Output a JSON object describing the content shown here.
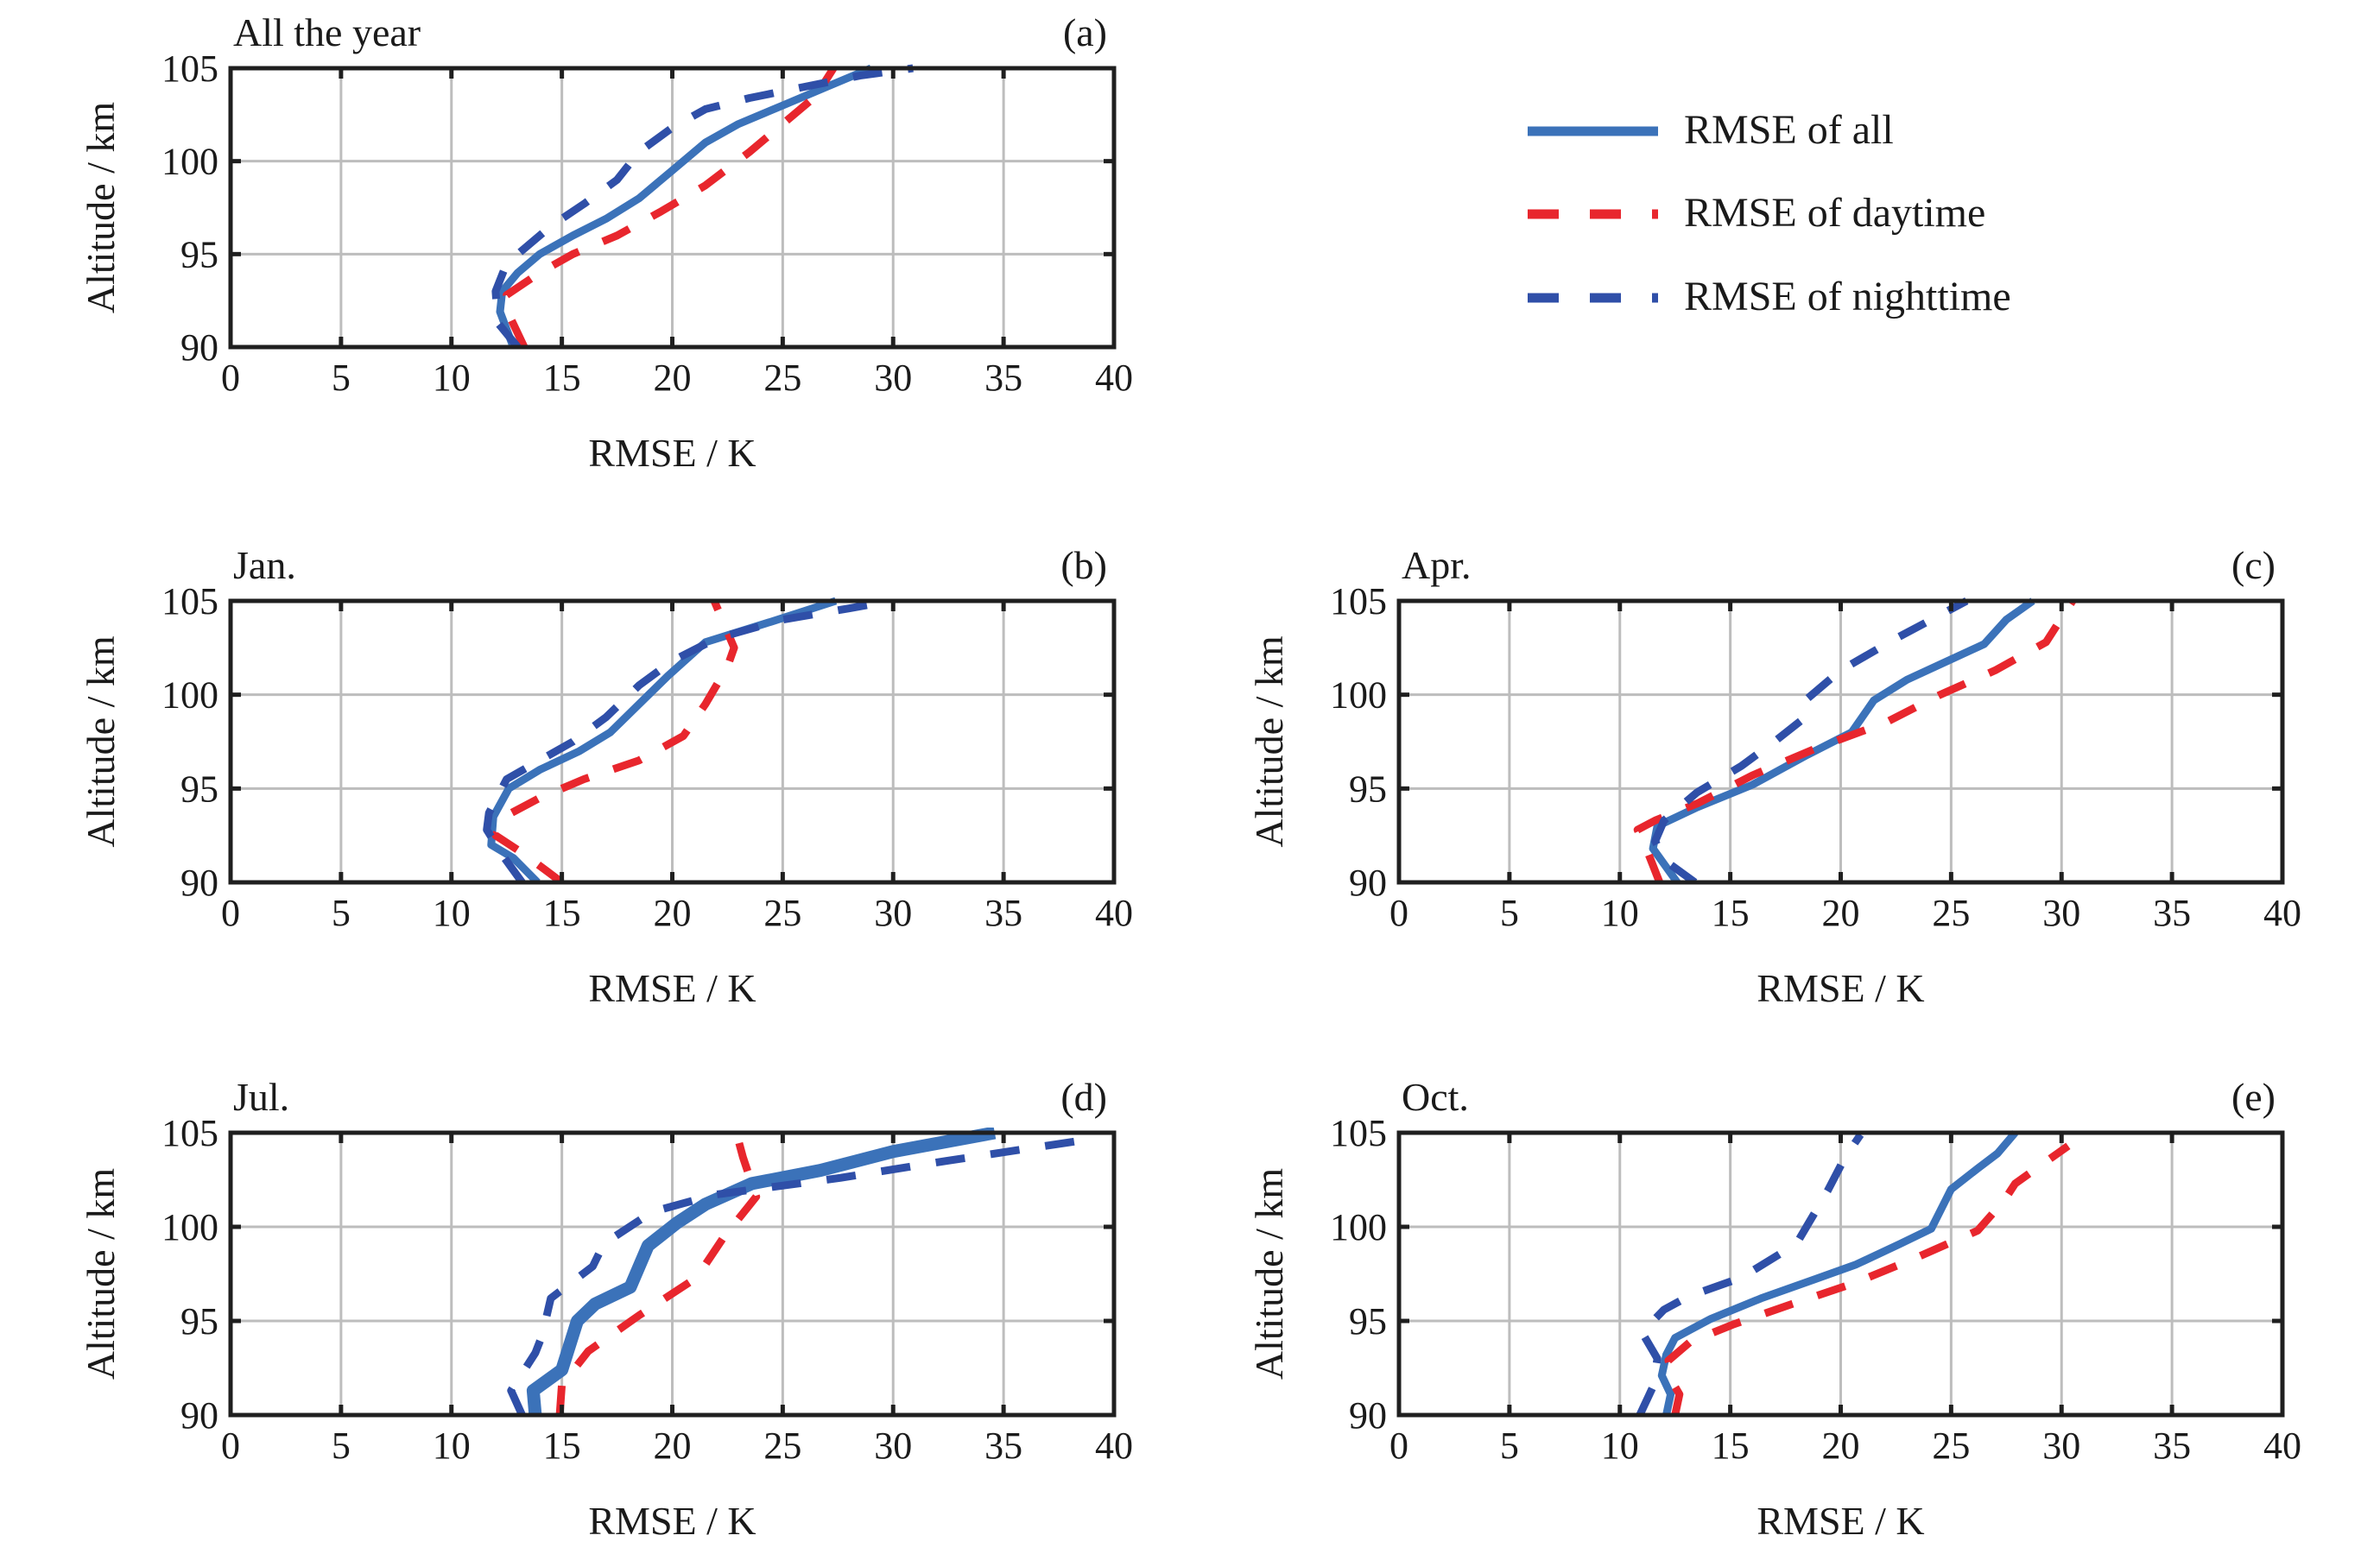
{
  "chart_data": {
    "type": "line",
    "legend": {
      "placement": "top-right",
      "entries": [
        {
          "name": "RMSE of all",
          "color": "#3b72b9",
          "style": "solid"
        },
        {
          "name": "RMSE of daytime",
          "color": "#e8262d",
          "style": "dashed"
        },
        {
          "name": "RMSE of nighttime",
          "color": "#2f4fa8",
          "style": "dashed"
        }
      ]
    },
    "panels": [
      {
        "id": "a",
        "label": "(a)",
        "title": "All the year",
        "xlabel": "RMSE / K",
        "ylabel": "Altitude / km",
        "xlim": [
          0,
          40
        ],
        "ylim": [
          90,
          105
        ],
        "xticks": [
          0,
          5,
          10,
          15,
          20,
          25,
          30,
          35,
          40
        ],
        "yticks": [
          90,
          95,
          100,
          105
        ],
        "grid": true,
        "series": [
          {
            "name": "RMSE of all",
            "points": [
              [
                12.8,
                90
              ],
              [
                12.2,
                91.9
              ],
              [
                12.3,
                93
              ],
              [
                13,
                94
              ],
              [
                14,
                95
              ],
              [
                15.5,
                96
              ],
              [
                17,
                96.9
              ],
              [
                18.5,
                98
              ],
              [
                20,
                99.5
              ],
              [
                21.5,
                101
              ],
              [
                23,
                102
              ],
              [
                25,
                103
              ],
              [
                27,
                104
              ],
              [
                29,
                105
              ]
            ]
          },
          {
            "name": "RMSE of daytime",
            "points": [
              [
                13.3,
                90
              ],
              [
                12.7,
                91.5
              ],
              [
                12.5,
                92.8
              ],
              [
                14,
                94
              ],
              [
                15.5,
                95
              ],
              [
                17.5,
                96
              ],
              [
                19.5,
                97.3
              ],
              [
                21.5,
                98.7
              ],
              [
                23.5,
                100.5
              ],
              [
                25,
                102
              ],
              [
                26.5,
                103.5
              ],
              [
                27.3,
                105
              ]
            ]
          },
          {
            "name": "RMSE of nighttime",
            "points": [
              [
                13,
                90
              ],
              [
                12.1,
                91.3
              ],
              [
                12,
                93
              ],
              [
                12.5,
                94.5
              ],
              [
                13.5,
                95.5
              ],
              [
                14.5,
                96.5
              ],
              [
                16,
                97.7
              ],
              [
                17.5,
                99
              ],
              [
                18.5,
                100.5
              ],
              [
                20,
                101.8
              ],
              [
                21.5,
                102.8
              ],
              [
                23.5,
                103.4
              ],
              [
                26,
                104
              ],
              [
                28.5,
                104.6
              ],
              [
                30.9,
                105
              ]
            ]
          }
        ]
      },
      {
        "id": "b",
        "label": "(b)",
        "title": "Jan.",
        "xlabel": "RMSE / K",
        "ylabel": "Altitude / km",
        "xlim": [
          0,
          40
        ],
        "ylim": [
          90,
          105
        ],
        "xticks": [
          0,
          5,
          10,
          15,
          20,
          25,
          30,
          35,
          40
        ],
        "yticks": [
          90,
          95,
          100,
          105
        ],
        "grid": true,
        "series": [
          {
            "name": "RMSE of all",
            "points": [
              [
                13.9,
                90
              ],
              [
                12.8,
                91.3
              ],
              [
                11.8,
                92
              ],
              [
                11.9,
                93.5
              ],
              [
                12.6,
                95
              ],
              [
                14,
                96
              ],
              [
                15.8,
                97
              ],
              [
                17.2,
                98
              ],
              [
                18.5,
                99.5
              ],
              [
                19.8,
                101
              ],
              [
                21.5,
                102.8
              ],
              [
                24.5,
                103.9
              ],
              [
                27.4,
                105
              ]
            ]
          },
          {
            "name": "RMSE of daytime",
            "points": [
              [
                15,
                90
              ],
              [
                13.3,
                91.5
              ],
              [
                12,
                92.5
              ],
              [
                12.4,
                93.5
              ],
              [
                14,
                94.5
              ],
              [
                16,
                95.5
              ],
              [
                18.5,
                96.5
              ],
              [
                20.5,
                97.8
              ],
              [
                21.5,
                99.5
              ],
              [
                22.5,
                101.5
              ],
              [
                22.8,
                102.5
              ],
              [
                21.9,
                105
              ]
            ]
          },
          {
            "name": "RMSE of nighttime",
            "points": [
              [
                13.2,
                90
              ],
              [
                12.4,
                91.3
              ],
              [
                11.6,
                92.8
              ],
              [
                11.7,
                93.7
              ],
              [
                12.5,
                95.5
              ],
              [
                14,
                96.5
              ],
              [
                15.5,
                97.5
              ],
              [
                17,
                98.8
              ],
              [
                18.5,
                100.5
              ],
              [
                20,
                101.8
              ],
              [
                22,
                103
              ],
              [
                25,
                104
              ],
              [
                28,
                104.6
              ],
              [
                29.9,
                105
              ]
            ]
          }
        ]
      },
      {
        "id": "c",
        "label": "(c)",
        "title": "Apr.",
        "xlabel": "RMSE / K",
        "ylabel": "Altitude / km",
        "xlim": [
          0,
          40
        ],
        "ylim": [
          90,
          105
        ],
        "xticks": [
          0,
          5,
          10,
          15,
          20,
          25,
          30,
          35,
          40
        ],
        "yticks": [
          90,
          95,
          100,
          105
        ],
        "grid": true,
        "series": [
          {
            "name": "RMSE of all",
            "points": [
              [
                12.6,
                90
              ],
              [
                11.5,
                91.8
              ],
              [
                11.7,
                93
              ],
              [
                13.5,
                94
              ],
              [
                16,
                95.2
              ],
              [
                18.5,
                96.8
              ],
              [
                20.5,
                98
              ],
              [
                21.5,
                99.7
              ],
              [
                23,
                100.8
              ],
              [
                26.5,
                102.7
              ],
              [
                27.5,
                104
              ],
              [
                28.7,
                105
              ]
            ]
          },
          {
            "name": "RMSE of daytime",
            "points": [
              [
                11.8,
                90
              ],
              [
                11.3,
                91.5
              ],
              [
                10.8,
                92.8
              ],
              [
                11.6,
                93.3
              ],
              [
                13.5,
                94.2
              ],
              [
                16,
                95.7
              ],
              [
                19,
                97.2
              ],
              [
                22,
                98.5
              ],
              [
                24.5,
                100
              ],
              [
                27,
                101.3
              ],
              [
                29.3,
                102.8
              ],
              [
                30.5,
                105
              ]
            ]
          },
          {
            "name": "RMSE of nighttime",
            "points": [
              [
                13.4,
                90
              ],
              [
                12,
                91.2
              ],
              [
                11.6,
                92.2
              ],
              [
                12,
                93.3
              ],
              [
                13.5,
                94.8
              ],
              [
                15.5,
                96.2
              ],
              [
                17,
                97.5
              ],
              [
                18.4,
                98.8
              ],
              [
                18.5,
                99.8
              ],
              [
                20,
                101.3
              ],
              [
                22.5,
                103
              ],
              [
                25.7,
                105
              ]
            ]
          }
        ]
      },
      {
        "id": "d",
        "label": "(d)",
        "title": "Jul.",
        "xlabel": "RMSE / K",
        "ylabel": "Altitude / km",
        "xlim": [
          0,
          40
        ],
        "ylim": [
          90,
          105
        ],
        "xticks": [
          0,
          5,
          10,
          15,
          20,
          25,
          30,
          35,
          40
        ],
        "yticks": [
          90,
          95,
          100,
          105
        ],
        "grid": true,
        "series": [
          {
            "name": "RMSE of all",
            "points": [
              [
                13.8,
                90
              ],
              [
                13.7,
                91.3
              ],
              [
                15,
                92.4
              ],
              [
                15.7,
                95
              ],
              [
                16.5,
                95.9
              ],
              [
                18.1,
                96.8
              ],
              [
                18.9,
                99
              ],
              [
                20.2,
                100.2
              ],
              [
                21.5,
                101.2
              ],
              [
                23.6,
                102.3
              ],
              [
                26.7,
                103
              ],
              [
                30,
                104
              ],
              [
                34.6,
                105
              ]
            ]
          },
          {
            "name": "RMSE of daytime",
            "points": [
              [
                14.9,
                90
              ],
              [
                15,
                91.6
              ],
              [
                16.2,
                93.4
              ],
              [
                18.5,
                95.3
              ],
              [
                21.1,
                97.3
              ],
              [
                22.3,
                99.4
              ],
              [
                23.8,
                101.6
              ],
              [
                23.2,
                103.7
              ],
              [
                22.9,
                105
              ]
            ]
          },
          {
            "name": "RMSE of nighttime",
            "points": [
              [
                13.2,
                90
              ],
              [
                12.7,
                91.3
              ],
              [
                13.8,
                93.3
              ],
              [
                14.1,
                94.2
              ],
              [
                14.5,
                96.2
              ],
              [
                16.4,
                97.9
              ],
              [
                16.9,
                99.1
              ],
              [
                19.1,
                100.8
              ],
              [
                21.9,
                101.7
              ],
              [
                27.6,
                102.6
              ],
              [
                32.4,
                103.5
              ],
              [
                38.6,
                104.6
              ]
            ]
          }
        ]
      },
      {
        "id": "e",
        "label": "(e)",
        "title": "Oct.",
        "xlabel": "RMSE / K",
        "ylabel": "Altitude / km",
        "xlim": [
          0,
          40
        ],
        "ylim": [
          90,
          105
        ],
        "xticks": [
          0,
          5,
          10,
          15,
          20,
          25,
          30,
          35,
          40
        ],
        "yticks": [
          90,
          95,
          100,
          105
        ],
        "grid": true,
        "series": [
          {
            "name": "RMSE of all",
            "points": [
              [
                12.1,
                90
              ],
              [
                12.3,
                91.1
              ],
              [
                11.9,
                92.1
              ],
              [
                12.1,
                93.2
              ],
              [
                12.5,
                94.1
              ],
              [
                14.1,
                95.1
              ],
              [
                16.4,
                96.2
              ],
              [
                18.8,
                97.2
              ],
              [
                20.7,
                98
              ],
              [
                22.7,
                99.1
              ],
              [
                24.1,
                99.9
              ],
              [
                25,
                102
              ],
              [
                26.2,
                103.1
              ],
              [
                27.1,
                103.9
              ],
              [
                27.9,
                105
              ]
            ]
          },
          {
            "name": "RMSE of daytime",
            "points": [
              [
                12.5,
                90
              ],
              [
                12.7,
                91.1
              ],
              [
                12.5,
                91.5
              ],
              [
                12.2,
                92.9
              ],
              [
                13.2,
                93.9
              ],
              [
                15.1,
                94.8
              ],
              [
                17.8,
                95.9
              ],
              [
                20.6,
                97
              ],
              [
                23.3,
                98.3
              ],
              [
                26.2,
                99.8
              ],
              [
                27.4,
                101.4
              ],
              [
                27.9,
                102.3
              ],
              [
                30.3,
                104.3
              ]
            ]
          },
          {
            "name": "RMSE of nighttime",
            "points": [
              [
                10.9,
                90
              ],
              [
                11.5,
                91.5
              ],
              [
                11.7,
                93
              ],
              [
                11,
                94.4
              ],
              [
                12,
                95.6
              ],
              [
                13.1,
                96.3
              ],
              [
                15.5,
                97.3
              ],
              [
                18,
                99.1
              ],
              [
                19.4,
                101.9
              ],
              [
                20.2,
                103.7
              ],
              [
                20.9,
                104.9
              ]
            ]
          }
        ]
      }
    ]
  }
}
